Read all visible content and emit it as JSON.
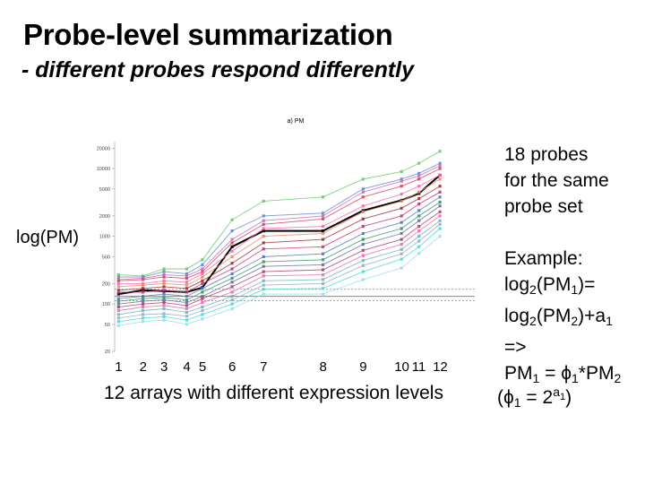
{
  "slide": {
    "title": "Probe-level summarization",
    "subtitle": "- different probes respond differently",
    "side_note": [
      "18 probes",
      "for the same",
      "probe set"
    ],
    "y_axis_label": "log(PM)",
    "x_axis_label": "12 arrays with different expression levels",
    "example": {
      "line1": "Example:",
      "line2_a": "log",
      "line2_sub": "2",
      "line2_b": "(PM",
      "line2_sub2": "1",
      "line2_c": ")=",
      "line3_a": "log",
      "line3_sub": "2",
      "line3_b": "(PM",
      "line3_sub2": "2",
      "line3_c": ")+a",
      "line3_sub3": "1",
      "line4": "=>",
      "line5_a": "PM",
      "line5_sub": "1",
      "line5_b": " = ",
      "line5_phi": "ϕ",
      "line5_sub2": "1",
      "line5_c": "*PM",
      "line5_sub3": "2",
      "line6_a": "(",
      "line6_phi": "ϕ",
      "line6_sub": "1",
      "line6_b": " = 2",
      "line6_sup": "a",
      "line6_supsub": "1",
      "line6_c": ")"
    },
    "x_tick_numbers": [
      "1",
      "2",
      "3",
      "4",
      "5",
      "6",
      "7",
      "8",
      "9",
      "10",
      "11",
      "12"
    ]
  },
  "chart_data": {
    "type": "line",
    "title": "a) PM",
    "ylabel": "",
    "xlabel": "",
    "y_scale": "log",
    "ylim": [
      20,
      25000
    ],
    "y_ticks": [
      20,
      50,
      100,
      200,
      500,
      1000,
      2000,
      5000,
      10000,
      20000
    ],
    "y_tick_labels": [
      "20",
      "50",
      "100",
      "200",
      "500",
      "1000",
      "2000",
      "5000",
      "10000",
      "20000"
    ],
    "x": [
      1,
      2,
      3,
      4,
      5,
      6,
      7,
      8,
      9,
      10,
      11,
      12
    ],
    "reference_lines": [
      {
        "y": 165,
        "style": "dotted",
        "color": "#888888"
      },
      {
        "y": 130,
        "style": "solid",
        "color": "#888888"
      },
      {
        "y": 112,
        "style": "dotted",
        "color": "#888888"
      }
    ],
    "series": [
      {
        "color": "#000000",
        "bold": true,
        "values": [
          140,
          160,
          155,
          150,
          175,
          700,
          1200,
          1200,
          2400,
          3400,
          4300,
          8000
        ]
      },
      {
        "color": "#66cc66",
        "values": [
          270,
          260,
          330,
          330,
          450,
          1750,
          3300,
          3800,
          7000,
          9000,
          12000,
          18000
        ]
      },
      {
        "color": "#6688cc",
        "values": [
          250,
          250,
          300,
          280,
          380,
          1200,
          2000,
          2200,
          5000,
          7000,
          8500,
          12000
        ]
      },
      {
        "color": "#cc66cc",
        "values": [
          230,
          240,
          270,
          260,
          330,
          900,
          1700,
          2000,
          4500,
          6500,
          7800,
          11000
        ]
      },
      {
        "color": "#dd4455",
        "values": [
          220,
          230,
          250,
          240,
          300,
          800,
          1500,
          1800,
          3800,
          5500,
          7000,
          10000
        ]
      },
      {
        "color": "#ff66aa",
        "values": [
          200,
          200,
          220,
          210,
          280,
          600,
          1300,
          1400,
          2800,
          4200,
          5500,
          8000
        ]
      },
      {
        "color": "#ee8866",
        "values": [
          180,
          190,
          200,
          190,
          250,
          500,
          1000,
          1100,
          2300,
          3300,
          4500,
          7000
        ]
      },
      {
        "color": "#993333",
        "values": [
          160,
          170,
          180,
          170,
          220,
          400,
          800,
          900,
          1800,
          2600,
          3600,
          5500
        ]
      },
      {
        "color": "#cc3377",
        "values": [
          150,
          150,
          160,
          150,
          200,
          330,
          650,
          700,
          1400,
          2000,
          3000,
          4500
        ]
      },
      {
        "color": "#5577bb",
        "values": [
          120,
          130,
          140,
          130,
          170,
          280,
          500,
          550,
          1100,
          1600,
          2400,
          3800
        ]
      },
      {
        "color": "#339966",
        "values": [
          110,
          120,
          125,
          115,
          150,
          240,
          420,
          450,
          900,
          1300,
          2000,
          3200
        ]
      },
      {
        "color": "#7766aa",
        "values": [
          100,
          110,
          115,
          105,
          130,
          210,
          360,
          380,
          760,
          1100,
          1700,
          2800
        ]
      },
      {
        "color": "#aa4466",
        "values": [
          90,
          100,
          105,
          95,
          120,
          180,
          300,
          320,
          620,
          900,
          1400,
          2300
        ]
      },
      {
        "color": "#ee66bb",
        "values": [
          80,
          90,
          95,
          85,
          105,
          150,
          260,
          270,
          520,
          760,
          1200,
          2000
        ]
      },
      {
        "color": "#66bbbb",
        "values": [
          70,
          80,
          85,
          75,
          90,
          130,
          220,
          230,
          440,
          640,
          1000,
          1700
        ]
      },
      {
        "color": "#99aacc",
        "values": [
          62,
          70,
          72,
          66,
          80,
          115,
          190,
          200,
          370,
          550,
          850,
          1500
        ]
      },
      {
        "color": "#44dddd",
        "values": [
          55,
          62,
          65,
          58,
          70,
          100,
          165,
          170,
          300,
          460,
          700,
          1300
        ]
      },
      {
        "color": "#99ddee",
        "values": [
          48,
          55,
          58,
          50,
          60,
          85,
          140,
          140,
          230,
          340,
          560,
          1000
        ]
      }
    ]
  }
}
